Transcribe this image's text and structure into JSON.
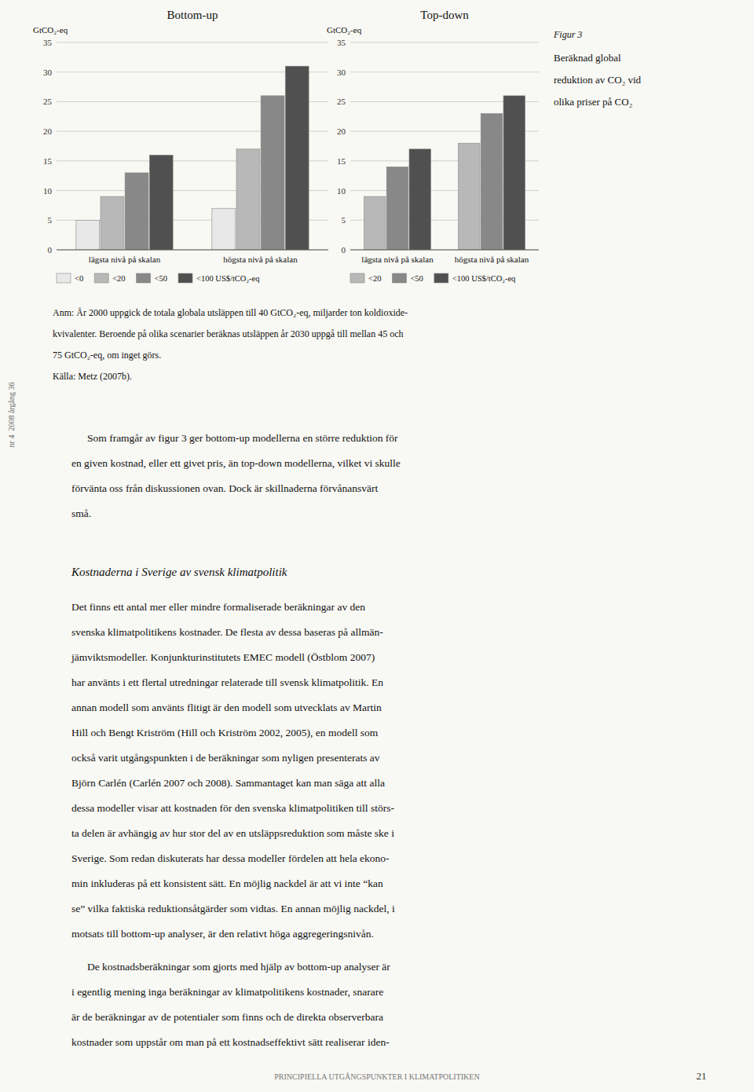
{
  "chart_data": [
    {
      "type": "bar",
      "title": "Bottom-up",
      "y_label": "GtCO₂-eq",
      "categories": [
        "lägsta nivå på skalan",
        "högsta nivå på skalan"
      ],
      "series": [
        {
          "name": "<0",
          "color": "#e8e8e8",
          "values": [
            5,
            7
          ]
        },
        {
          "name": "<20",
          "color": "#b8b8b8",
          "values": [
            9,
            17
          ]
        },
        {
          "name": "<50",
          "color": "#888888",
          "values": [
            13,
            26
          ]
        },
        {
          "name": "<100 US$/tCO₂-eq",
          "color": "#505050",
          "values": [
            16,
            31
          ]
        }
      ],
      "ylim": [
        0,
        35
      ],
      "yticks": [
        0,
        5,
        10,
        15,
        20,
        25,
        30,
        35
      ],
      "grid": true,
      "legend": "bottom"
    },
    {
      "type": "bar",
      "title": "Top-down",
      "y_label": "GtCO₂-eq",
      "categories": [
        "lägsta nivå på skalan",
        "högsta nivå på skalan"
      ],
      "series": [
        {
          "name": "<20",
          "color": "#b8b8b8",
          "values": [
            9,
            18
          ]
        },
        {
          "name": "<50",
          "color": "#888888",
          "values": [
            14,
            23
          ]
        },
        {
          "name": "<100 US$/tCO₂-eq",
          "color": "#505050",
          "values": [
            17,
            26
          ]
        }
      ],
      "ylim": [
        0,
        35
      ],
      "yticks": [
        0,
        5,
        10,
        15,
        20,
        25,
        30,
        35
      ],
      "grid": true,
      "legend": "bottom"
    }
  ],
  "figure_caption": {
    "title": "Figur 3",
    "lines": [
      "Beräknad global",
      "reduktion av CO₂ vid",
      "olikа priser på CO₂"
    ]
  },
  "annotations": [
    "Anm: År 2000 uppgick de totala globala utsläppen till 40 GtCO₂-eq, miljarder ton koldioxide-",
    "kvivalenter. Beroende på olika scenarier beräknas utsläppen år 2030 uppgå till mellan 45 och",
    "75 GtCO₂-eq, om inget görs.",
    "Källa: Metz (2007b)."
  ],
  "body": [
    [
      "Som framgår av figur 3 ger bottom-up modellerna en större reduktion för",
      "en given kostnad, eller ett givet pris, än top-down modellerna, vilket vi skulle",
      "förvänta oss från diskussionen ovan. Dock är skillnaderna förvånansvärt",
      "små."
    ]
  ],
  "heading": "Kostnaderna i Sverige av svensk klimatpolitik",
  "body_after_heading": [
    [
      "Det finns ett antal mer eller mindre formaliserade beräkningar av den",
      "svenska klimatpolitikens kostnader. De flesta av dessa baseras på allmän-",
      "jämviktsmodeller. Konjunkturinstitutets EMEC modell (Östblom 2007)",
      "har använts i ett flertal utredningar relaterade till svensk klimatpolitik. En",
      "annan modell som använts flitigt är den modell som utvecklats av Martin",
      "Hill och Bengt Kriström (Hill och Kriström 2002, 2005), en modell som",
      "också varit utgångspunkten i de beräkningar som nyligen presenterats av",
      "Björn Carlén (Carlén 2007 och 2008). Sammantaget kan man säga att alla",
      "dessa modeller visar att kostnaden för den svenska klimatpolitiken till störs-",
      "ta delen är avhängig av hur stor del av en utsläppsreduktion som måste ske i",
      "Sverige. Som redan diskuterats har dessa modeller fördelen att hela ekono-",
      "min inkluderas på ett konsistent sätt. En möjlig nackdel är att vi inte “kan",
      "se” vilka faktiska reduktionsåtgärder som vidtas. En annan möjlig nackdel, i",
      "motsats till bottom-up analyser, är den relativt höga aggregeringsnivån."
    ],
    [
      "De kostnadsberäkningar som gjorts med hjälp av bottom-up analyser är",
      "i egentlig mening inga beräkningar av klimatpolitikens kostnader, snarare",
      "är de beräkningar av de potentialer som finns och de direkta observerbara",
      "kostnader som uppstår om man på ett kostnadseffektivt sätt realiserar iden-"
    ]
  ],
  "sidebar": "nr 4  2008 årgång 36",
  "footer": "PRINCIPIELLA UTGÅNGSPUNKTER I KLIMATPOLITIKEN",
  "page_number": "21"
}
